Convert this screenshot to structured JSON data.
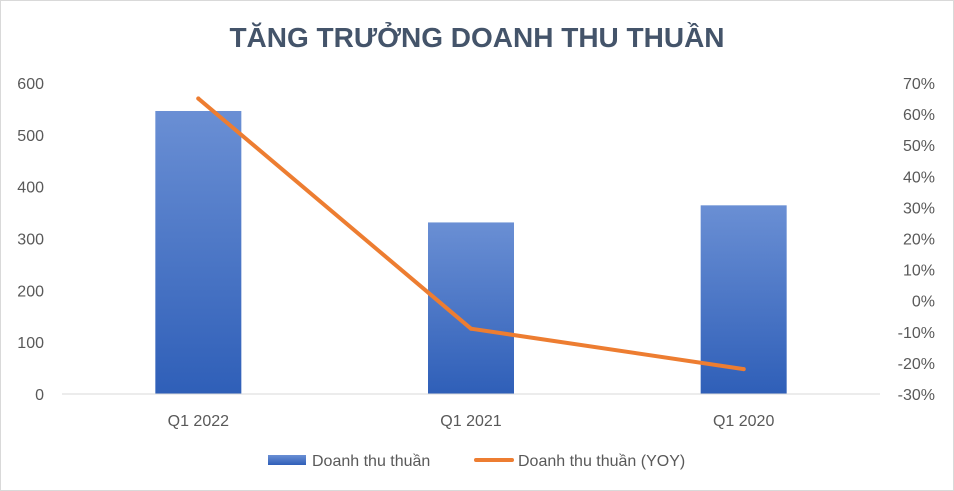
{
  "chart_data": {
    "type": "bar",
    "title": "TĂNG TRƯỞNG DOANH THU THUẦN",
    "categories": [
      "Q1 2022",
      "Q1 2021",
      "Q1 2020"
    ],
    "series": [
      {
        "name": "Doanh thu thuần",
        "type": "bar",
        "axis": "left",
        "color": "#4472c4",
        "values": [
          546,
          331,
          364
        ]
      },
      {
        "name": "Doanh thu thuần (YOY)",
        "type": "line",
        "axis": "right",
        "color": "#ed7d31",
        "values": [
          0.65,
          -0.09,
          -0.22
        ]
      }
    ],
    "y_left": {
      "min": 0,
      "max": 600,
      "step": 100,
      "ticks": [
        "0",
        "100",
        "200",
        "300",
        "400",
        "500",
        "600"
      ]
    },
    "y_right": {
      "min": -0.3,
      "max": 0.7,
      "step": 0.1,
      "ticks": [
        "-30%",
        "-20%",
        "-10%",
        "0%",
        "10%",
        "20%",
        "30%",
        "40%",
        "50%",
        "60%",
        "70%"
      ]
    },
    "grid": false,
    "legend": "bottom"
  }
}
